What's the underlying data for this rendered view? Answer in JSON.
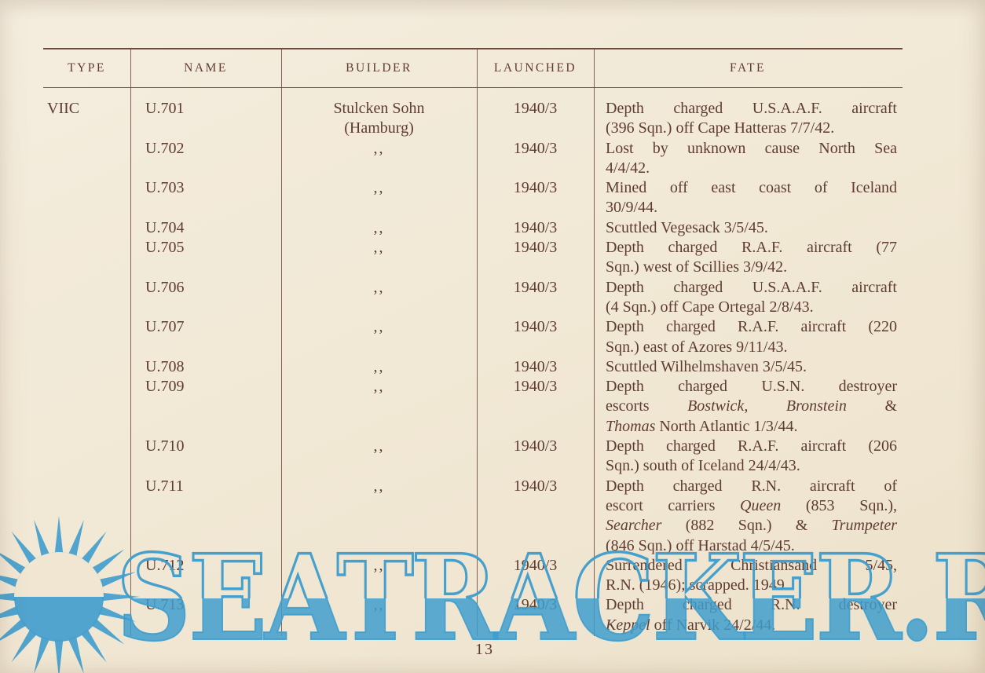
{
  "page": {
    "number": "13",
    "background_color": "#f1e8d5",
    "ink_color": "#5e3c33",
    "rule_color": "#6e4a3d"
  },
  "table": {
    "headers": [
      "TYPE",
      "NAME",
      "BUILDER",
      "LAUNCHED",
      "FATE"
    ],
    "ditto_mark": ",,",
    "rows": [
      {
        "type": "VIIC",
        "name": "U.701",
        "builder": [
          "Stulcken Sohn",
          "(Hamburg)"
        ],
        "launched": "1940/3",
        "fate": [
          "Depth charged U.S.A.A.F. aircraft",
          "(396 Sqn.) off Cape Hatteras 7/7/42."
        ]
      },
      {
        "name": "U.702",
        "builder": [
          ",,"
        ],
        "launched": "1940/3",
        "fate": [
          "Lost by unknown cause North Sea",
          "4/4/42."
        ]
      },
      {
        "name": "U.703",
        "builder": [
          ",,"
        ],
        "launched": "1940/3",
        "fate": [
          "Mined off east coast of Iceland",
          "30/9/44."
        ]
      },
      {
        "name": "U.704",
        "builder": [
          ",,"
        ],
        "launched": "1940/3",
        "fate": [
          "Scuttled Vegesack 3/5/45."
        ]
      },
      {
        "name": "U.705",
        "builder": [
          ",,"
        ],
        "launched": "1940/3",
        "fate": [
          "Depth charged R.A.F. aircraft (77",
          "Sqn.) west of Scillies 3/9/42."
        ]
      },
      {
        "name": "U.706",
        "builder": [
          ",,"
        ],
        "launched": "1940/3",
        "fate": [
          "Depth charged U.S.A.A.F. aircraft",
          "(4 Sqn.) off Cape Ortegal 2/8/43."
        ]
      },
      {
        "name": "U.707",
        "builder": [
          ",,"
        ],
        "launched": "1940/3",
        "fate": [
          "Depth charged R.A.F. aircraft (220",
          "Sqn.) east of Azores 9/11/43."
        ]
      },
      {
        "name": "U.708",
        "builder": [
          ",,"
        ],
        "launched": "1940/3",
        "fate": [
          "Scuttled Wilhelmshaven 3/5/45."
        ]
      },
      {
        "name": "U.709",
        "builder": [
          ",,"
        ],
        "launched": "1940/3",
        "fate": [
          "Depth charged U.S.N. destroyer",
          "escorts *Bostwick*, *Bronstein* &",
          "*Thomas* North Atlantic 1/3/44."
        ]
      },
      {
        "name": "U.710",
        "builder": [
          ",,"
        ],
        "launched": "1940/3",
        "fate": [
          "Depth charged R.A.F. aircraft (206",
          "Sqn.) south of Iceland 24/4/43."
        ]
      },
      {
        "name": "U.711",
        "builder": [
          ",,"
        ],
        "launched": "1940/3",
        "fate": [
          "Depth charged R.N. aircraft of",
          "escort carriers *Queen* (853 Sqn.),",
          "*Searcher* (882 Sqn.) & *Trumpeter*",
          "(846 Sqn.) off Harstad 4/5/45."
        ]
      },
      {
        "name": "U.712",
        "builder": [
          ",,"
        ],
        "launched": "1940/3",
        "fate": [
          "Surrendered Christiansand 5/45,",
          "R.N. (1946); scrapped. 1949"
        ]
      },
      {
        "name": "U.713",
        "builder": [
          ",,"
        ],
        "launched": "1940/3",
        "fate": [
          "Depth charged R.N. destroyer",
          "*Keppel* off Narvik 24/2/44."
        ]
      }
    ]
  },
  "watermark": {
    "text": "SEATRACKER.RU",
    "color": "#3e9dcd",
    "logo": "sun-logo"
  }
}
